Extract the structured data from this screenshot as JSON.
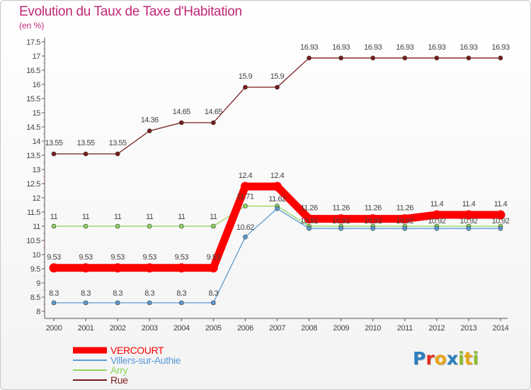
{
  "title": "Evolution du Taux de Taxe d'Habitation",
  "subtitle": "(en %)",
  "logo": {
    "letters": [
      {
        "ch": "P",
        "color": "#2a7fc1"
      },
      {
        "ch": "r",
        "color": "#e0301e"
      },
      {
        "ch": "o",
        "color": "#e8a617"
      },
      {
        "ch": "x",
        "color": "#2a7fc1"
      },
      {
        "ch": "i",
        "color": "#8cbe2f"
      },
      {
        "ch": "t",
        "color": "#e8a617"
      },
      {
        "ch": "i",
        "color": "#8cbe2f"
      }
    ]
  },
  "chart_data": {
    "type": "line",
    "x": [
      "2000",
      "2001",
      "2002",
      "2003",
      "2004",
      "2005",
      "2006",
      "2007",
      "2008",
      "2009",
      "2010",
      "2011",
      "2012",
      "2013",
      "2014"
    ],
    "yticks": [
      "8",
      "8.5",
      "9",
      "9.5",
      "10",
      "10.5",
      "11",
      "11.5",
      "12",
      "12.5",
      "13",
      "13.5",
      "14",
      "14.5",
      "15",
      "15.5",
      "16",
      "16.5",
      "17",
      "17.5"
    ],
    "ylim": [
      8,
      17.5
    ],
    "grid": false,
    "legend_position": "bottom-left",
    "series": [
      {
        "name": "VERCOURT",
        "color": "#ff0000",
        "values": [
          9.53,
          9.53,
          9.53,
          9.53,
          9.53,
          9.53,
          12.4,
          12.4,
          11.26,
          11.26,
          11.26,
          11.26,
          11.4,
          11.4,
          11.4
        ],
        "labels": [
          "9.53",
          "9.53",
          "9.53",
          "9.53",
          "9.53",
          "9.53",
          "12.4",
          "12.4",
          "11.26",
          "11.26",
          "11.26",
          "11.26",
          "11.4",
          "11.4",
          "11.4"
        ]
      },
      {
        "name": "Villers-sur-Authie",
        "color": "#5b9bd5",
        "values": [
          8.3,
          8.3,
          8.3,
          8.3,
          8.3,
          8.3,
          10.62,
          11.62,
          10.92,
          10.92,
          10.92,
          10.92,
          10.92,
          10.92,
          10.92
        ],
        "labels": [
          "8.3",
          "8.3",
          "8.3",
          "8.3",
          "8.3",
          "8.3",
          "10.62",
          "11.62",
          "10.92",
          "10.92",
          "10.92",
          "10.92",
          "10.92",
          "10.92",
          "10.92"
        ]
      },
      {
        "name": "Arry",
        "color": "#8cd65a",
        "values": [
          11,
          11,
          11,
          11,
          11,
          11,
          11.71,
          11.71,
          11,
          11,
          11,
          11,
          11,
          11,
          11
        ],
        "labels": [
          "11",
          "11",
          "11",
          "11",
          "11",
          "11",
          "11.71",
          "",
          "",
          "",
          "",
          "",
          "",
          "",
          ""
        ]
      },
      {
        "name": "Rue",
        "color": "#7a1c1c",
        "values": [
          13.55,
          13.55,
          13.55,
          14.36,
          14.65,
          14.65,
          15.9,
          15.9,
          16.93,
          16.93,
          16.93,
          16.93,
          16.93,
          16.93,
          16.93
        ],
        "labels": [
          "13.55",
          "13.55",
          "13.55",
          "14.36",
          "14.65",
          "14.65",
          "15.9",
          "15.9",
          "16.93",
          "16.93",
          "16.93",
          "16.93",
          "16.93",
          "16.93",
          "16.93"
        ]
      }
    ]
  }
}
